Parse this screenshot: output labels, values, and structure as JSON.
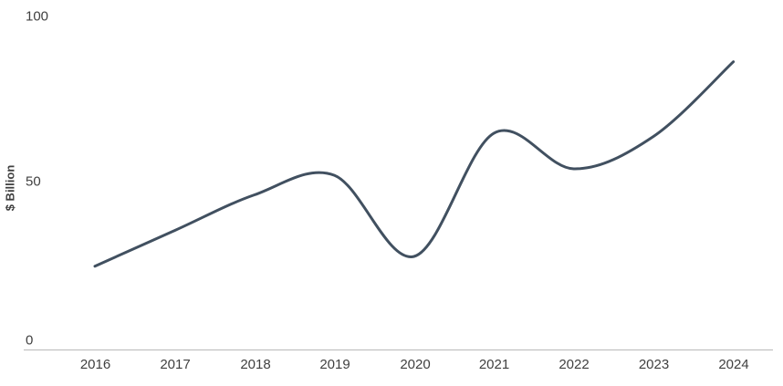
{
  "chart": {
    "y_axis_title": "$ Billion",
    "y_ticks": [
      "100",
      "50",
      "0"
    ],
    "x_ticks": [
      "2016",
      "2017",
      "2018",
      "2019",
      "2020",
      "2021",
      "2022",
      "2023",
      "2024"
    ],
    "line_color": "#415060",
    "axis_line_color": "#b9b9b9",
    "tick_label_color": "#404040"
  },
  "chart_data": {
    "type": "line",
    "title": "",
    "xlabel": "",
    "ylabel": "$ Billion",
    "x": [
      2016,
      2017,
      2018,
      2019,
      2020,
      2021,
      2022,
      2023,
      2024
    ],
    "values": [
      23,
      34,
      45,
      51,
      26,
      64,
      53,
      63,
      86
    ],
    "ylim": [
      0,
      100
    ],
    "y_tick_values": [
      0,
      50,
      100
    ],
    "grid": false,
    "legend": false,
    "smooth": true
  }
}
